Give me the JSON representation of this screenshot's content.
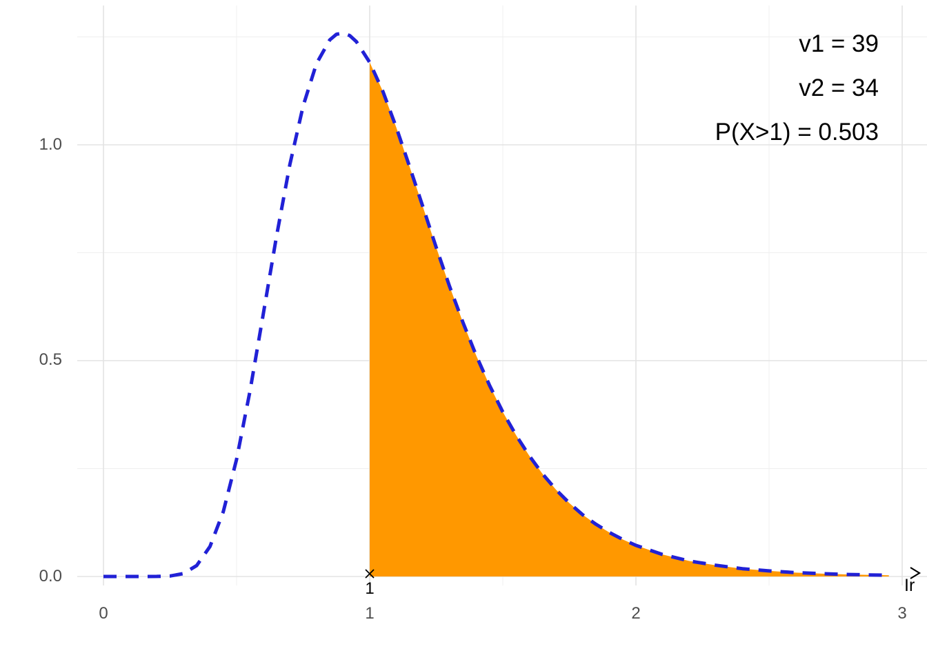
{
  "chart_data": {
    "type": "area",
    "subtype": "density-curve-with-shaded-upper-tail",
    "title": "",
    "xlabel": "",
    "ylabel": "",
    "xlim": [
      0,
      3.05
    ],
    "ylim": [
      0,
      1.32
    ],
    "grid": "on",
    "x_tick_labels": [
      "0",
      "1",
      "2",
      "3"
    ],
    "x_tick_values": [
      0,
      1,
      2,
      3
    ],
    "x_minor_values": [
      0.5,
      1.5,
      2.5
    ],
    "y_tick_labels": [
      "0.0",
      "0.5",
      "1.0"
    ],
    "y_tick_values": [
      0,
      0.5,
      1.0
    ],
    "y_minor_values": [
      0.25,
      0.75,
      1.25
    ],
    "annotations": {
      "v1": "v1 = 39",
      "v2": "v2 = 34",
      "prob": "P(X>1) = 0.503"
    },
    "critical_marker": {
      "x": 1,
      "y": 0,
      "glyph": "×",
      "label": "1"
    },
    "axis_clipped_label": "Ir",
    "shade_from": 1,
    "curve_end": 2.95,
    "series": [
      {
        "name": "F-density curve",
        "style": "dashed",
        "color": "#2121d6"
      },
      {
        "name": "shaded tail area P(X>1)",
        "style": "filled",
        "color": "#ff9800"
      }
    ],
    "curve": [
      [
        0,
        0
      ],
      [
        0.05,
        0
      ],
      [
        0.1,
        0
      ],
      [
        0.15,
        0
      ],
      [
        0.2,
        0.0001
      ],
      [
        0.25,
        0.0011
      ],
      [
        0.3,
        0.0067
      ],
      [
        0.35,
        0.0253
      ],
      [
        0.4,
        0.0693
      ],
      [
        0.45,
        0.15
      ],
      [
        0.5,
        0.2714
      ],
      [
        0.55,
        0.4283
      ],
      [
        0.6,
        0.607
      ],
      [
        0.65,
        0.788
      ],
      [
        0.7,
        0.954
      ],
      [
        0.75,
        1.09
      ],
      [
        0.8,
        1.188
      ],
      [
        0.85,
        1.243
      ],
      [
        0.875,
        1.256
      ],
      [
        0.9,
        1.259
      ],
      [
        0.925,
        1.253
      ],
      [
        0.95,
        1.239
      ],
      [
        1,
        1.191
      ],
      [
        1.05,
        1.123
      ],
      [
        1.1,
        1.04
      ],
      [
        1.15,
        0.949
      ],
      [
        1.2,
        0.856
      ],
      [
        1.25,
        0.762
      ],
      [
        1.3,
        0.672
      ],
      [
        1.35,
        0.589
      ],
      [
        1.4,
        0.512
      ],
      [
        1.45,
        0.443
      ],
      [
        1.5,
        0.381
      ],
      [
        1.55,
        0.327
      ],
      [
        1.6,
        0.279
      ],
      [
        1.65,
        0.237
      ],
      [
        1.7,
        0.201
      ],
      [
        1.75,
        0.17
      ],
      [
        1.8,
        0.143
      ],
      [
        1.85,
        0.121
      ],
      [
        1.9,
        0.102
      ],
      [
        1.95,
        0.086
      ],
      [
        2,
        0.072
      ],
      [
        2.1,
        0.051
      ],
      [
        2.2,
        0.036
      ],
      [
        2.3,
        0.026
      ],
      [
        2.4,
        0.018
      ],
      [
        2.5,
        0.013
      ],
      [
        2.6,
        0.009
      ],
      [
        2.7,
        0.0065
      ],
      [
        2.8,
        0.0047
      ],
      [
        2.9,
        0.0033
      ],
      [
        2.95,
        0.0028
      ]
    ],
    "colors": {
      "curve": "#2121d6",
      "fill": "#ff9800",
      "grid_major": "#e3e3e3",
      "grid_minor": "#efefef",
      "tick_text": "#4d4d4d",
      "annotation_text": "#000000",
      "marker": "#000000",
      "background": "#ffffff"
    }
  }
}
